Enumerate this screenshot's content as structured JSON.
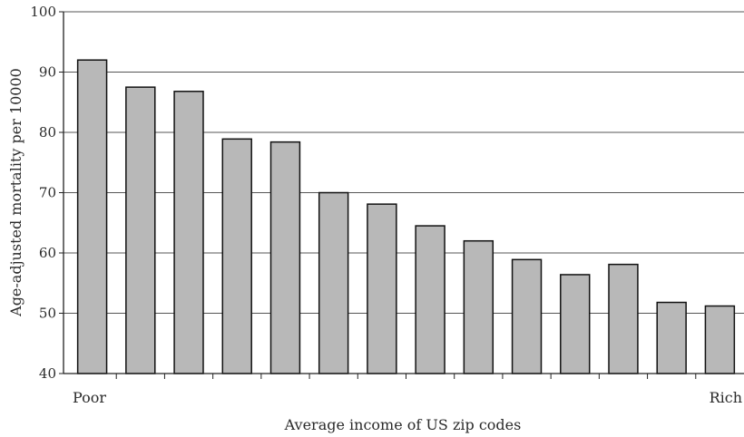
{
  "chart_data": {
    "type": "bar",
    "xlabel": "Average income of US zip codes",
    "ylabel": "Age-adjusted mortality per 10000",
    "x_end_labels": {
      "left": "Poor",
      "right": "Rich"
    },
    "ylim": [
      40,
      100
    ],
    "yticks": [
      40,
      50,
      60,
      70,
      80,
      90,
      100
    ],
    "grid": true,
    "categories": [
      "1",
      "2",
      "3",
      "4",
      "5",
      "6",
      "7",
      "8",
      "9",
      "10",
      "11",
      "12",
      "13",
      "14"
    ],
    "values": [
      92,
      87.5,
      86.8,
      78.9,
      78.4,
      70,
      68.1,
      64.5,
      62,
      58.9,
      56.4,
      58.1,
      51.8,
      51.2
    ],
    "colors": {
      "bar_fill": "#b8b8b8",
      "bar_stroke": "#111111",
      "grid": "#555555",
      "axis": "#222222"
    }
  }
}
